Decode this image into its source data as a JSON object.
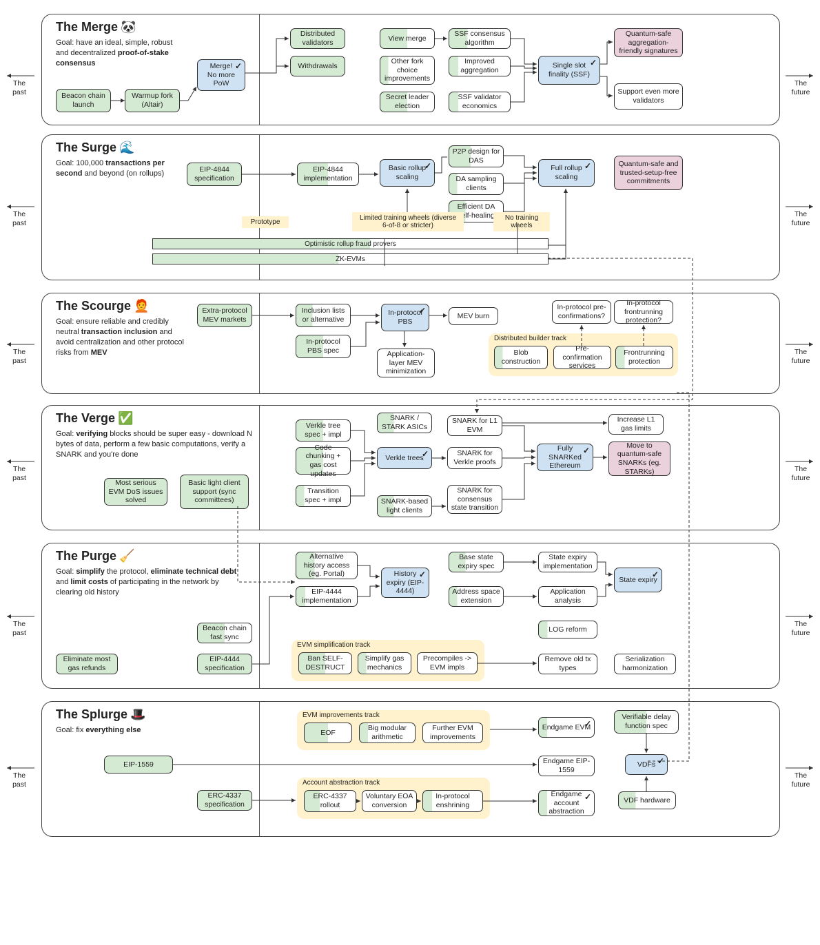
{
  "global": {
    "past": "The past",
    "future": "The future"
  },
  "sections": {
    "merge": {
      "title": "The Merge",
      "emoji": "🐼",
      "goal": "Goal: have an ideal, simple, robust and decentralized <b>proof-of-stake consensus</b>",
      "beacon": "Beacon chain launch",
      "warmup": "Warmup fork (Altair)",
      "merge": "Merge!<br>No more PoW",
      "distval": "Distributed validators",
      "withdraw": "Withdrawals",
      "viewmerge": "View merge",
      "forkchoice": "Other fork choice improvements",
      "secretleader": "Secret leader election",
      "ssfcons": "SSF consensus algorithm",
      "impagg": "Improved aggregation",
      "ssfval": "SSF validator economics",
      "ssf": "Single slot finality (SSF)",
      "qsig": "Quantum-safe aggregation-friendly signatures",
      "moreval": "Support even more validators"
    },
    "surge": {
      "title": "The Surge",
      "emoji": "🌊",
      "goal": "Goal: 100,000 <b>transactions per second</b> and beyond (on rollups)",
      "eip4844spec": "EIP-4844 specification",
      "eip4844impl": "EIP-4844 implementation",
      "basicroll": "Basic rollup scaling",
      "p2pdas": "P2P design for DAS",
      "dasamp": "DA sampling clients",
      "daheal": "Efficient DA self-healing",
      "fullroll": "Full rollup scaling",
      "qcommit": "Quantum-safe and trusted-setup-free commitments",
      "proto": "Prototype",
      "limited": "Limited training wheels (diverse 6-of-8 or stricter)",
      "notrain": "No training wheels",
      "optbar": "Optimistic rollup fraud provers",
      "zkevm": "ZK-EVMs"
    },
    "scourge": {
      "title": "The Scourge",
      "emoji": "🧑‍🦰",
      "goal": "Goal: ensure reliable and credibly neutral <b>transaction inclusion</b> and avoid centralization and other protocol risks from <b>MEV</b>",
      "extramev": "Extra-protocol MEV markets",
      "inclist": "Inclusion lists or alternative",
      "pbsspec": "In-protocol PBS spec",
      "pbs": "In-protocol PBS",
      "appmev": "Application-layer MEV minimization",
      "mevburn": "MEV burn",
      "preconfq": "In-protocol pre-confirmations?",
      "frontq": "In-protocol frontrunning protection?",
      "track": "Distributed builder track",
      "blobcon": "Blob construction",
      "preconfsvc": "Pre-confirmation services",
      "frontprot": "Frontrunning protection"
    },
    "verge": {
      "title": "The Verge",
      "emoji": "✅",
      "goal": "Goal: <b>verifying</b> blocks should be super easy - download N bytes of data, perform a few basic computations, verify a SNARK and you're done",
      "dos": "Most serious EVM DoS issues solved",
      "lightclient": "Basic light client support (sync committees)",
      "verklespec": "Verkle tree spec + impl",
      "codechunk": "Code chunking + gas cost updates",
      "transpec": "Transition spec + impl",
      "asics": "SNARK / STARK ASICs",
      "verkle": "Verkle trees",
      "snarkl1": "SNARK for L1 EVM",
      "snarkverkle": "SNARK for Verkle proofs",
      "snarklight": "SNARK-based light clients",
      "snarkconsensus": "SNARK for consensus state transition",
      "fully": "Fully SNARKed Ethereum",
      "gaslimits": "Increase L1 gas limits",
      "qsnark": "Move to quantum-safe SNARKs (eg. STARKs)"
    },
    "purge": {
      "title": "The Purge",
      "emoji": "🧹",
      "goal": "Goal: <b>simplify</b> the protocol, <b>eliminate technical debt</b> and <b>limit costs</b> of participating in the network by clearing old history",
      "gasrefund": "Eliminate most gas refunds",
      "eip4444spec": "EIP-4444 specification",
      "beaconfast": "Beacon chain fast sync",
      "althist": "Alternative history access (eg. Portal)",
      "eip4444impl": "EIP-4444 implementation",
      "histexp": "History expiry (EIP-4444)",
      "basestate": "Base state expiry spec",
      "addrext": "Address space extension",
      "stateimpl": "State expiry implementation",
      "appanalysis": "Application analysis",
      "logreform": "LOG reform",
      "removeold": "Remove old tx types",
      "stateexp": "State expiry",
      "serharm": "Serialization harmonization",
      "track": "EVM simplification track",
      "banself": "Ban SELF-DESTRUCT",
      "simplifygas": "Simplify gas mechanics",
      "precomp": "Precompiles -> EVM impls"
    },
    "splurge": {
      "title": "The Splurge",
      "emoji": "🎩",
      "goal": "Goal: fix <b>everything else</b>",
      "eip1559": "EIP-1559",
      "erc4337spec": "ERC-4337 specification",
      "evmtrack": "EVM improvements track",
      "eof": "EOF",
      "bigmod": "Big modular arithmetic",
      "furtherevm": "Further EVM improvements",
      "aatrack": "Account abstraction track",
      "erc4337roll": "ERC-4337 rollout",
      "eoa": "Voluntary EOA conversion",
      "enshrine": "In-protocol enshrining",
      "endevm": "Endgame EVM",
      "end1559": "Endgame EIP-1559",
      "endaa": "Endgame account abstraction",
      "vdfspec": "Verifiable delay function spec",
      "vdfs": "VDFs",
      "vdfhw": "VDF hardware"
    }
  },
  "style": {
    "colors": {
      "green": "#d5ead3",
      "blue": "#cfe2f3",
      "purple": "#ead1dc",
      "yellow": "#fff2cc",
      "border": "#333333"
    },
    "bars": {
      "optimistic_fill_pct": 55,
      "zkevm_fill_pct": 47
    }
  }
}
